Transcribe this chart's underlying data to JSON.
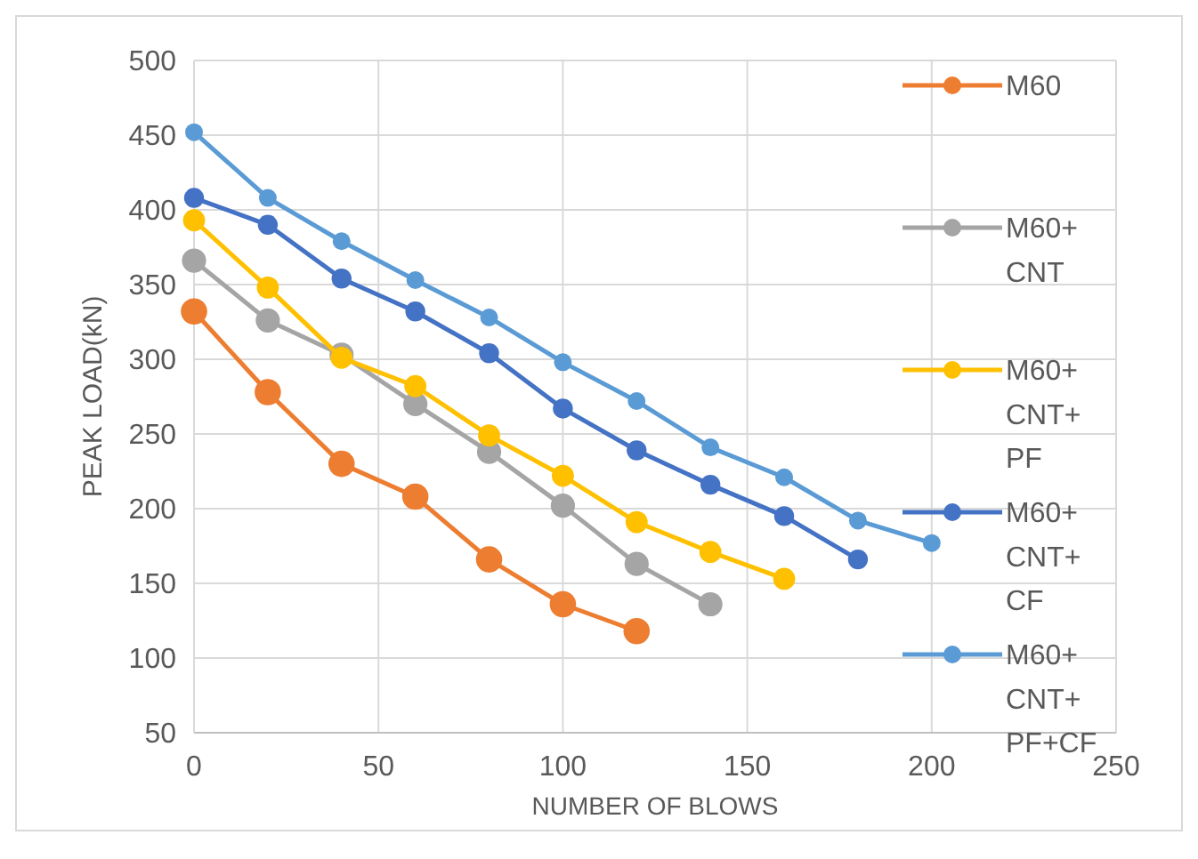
{
  "chart_data": {
    "type": "line",
    "xlabel": "NUMBER OF BLOWS",
    "ylabel": "PEAK LOAD(kN)",
    "xlim": [
      0,
      250
    ],
    "xticks": [
      0,
      50,
      100,
      150,
      200,
      250
    ],
    "ylim": [
      50,
      500
    ],
    "yticks": [
      50,
      100,
      150,
      200,
      250,
      300,
      350,
      400,
      450,
      500
    ],
    "grid": true,
    "legend": "right",
    "marker": "circle",
    "line_style": "solid",
    "series": [
      {
        "name": "M60",
        "color": "#ed7d31",
        "x": [
          0,
          20,
          40,
          60,
          80,
          100,
          120
        ],
        "values": [
          332,
          278,
          230,
          208,
          166,
          136,
          118
        ]
      },
      {
        "name": "M60+CNT",
        "color": "#a5a5a5",
        "x": [
          0,
          20,
          40,
          60,
          80,
          100,
          120,
          140
        ],
        "values": [
          366,
          326,
          303,
          270,
          238,
          202,
          163,
          136
        ]
      },
      {
        "name": "M60+CNT+PF",
        "color": "#ffc000",
        "x": [
          0,
          20,
          40,
          60,
          80,
          100,
          120,
          140,
          160
        ],
        "values": [
          393,
          348,
          301,
          282,
          249,
          222,
          191,
          171,
          153
        ]
      },
      {
        "name": "M60+CNT+CF",
        "color": "#4472c4",
        "x": [
          0,
          20,
          40,
          60,
          80,
          100,
          120,
          140,
          160,
          180
        ],
        "values": [
          408,
          390,
          354,
          332,
          304,
          267,
          239,
          216,
          195,
          166
        ]
      },
      {
        "name": "M60+CNT+PF+CF",
        "color": "#5b9bd5",
        "x": [
          0,
          20,
          40,
          60,
          80,
          100,
          120,
          140,
          160,
          180,
          200
        ],
        "values": [
          452,
          408,
          379,
          353,
          328,
          298,
          272,
          241,
          221,
          192,
          177
        ]
      }
    ]
  }
}
